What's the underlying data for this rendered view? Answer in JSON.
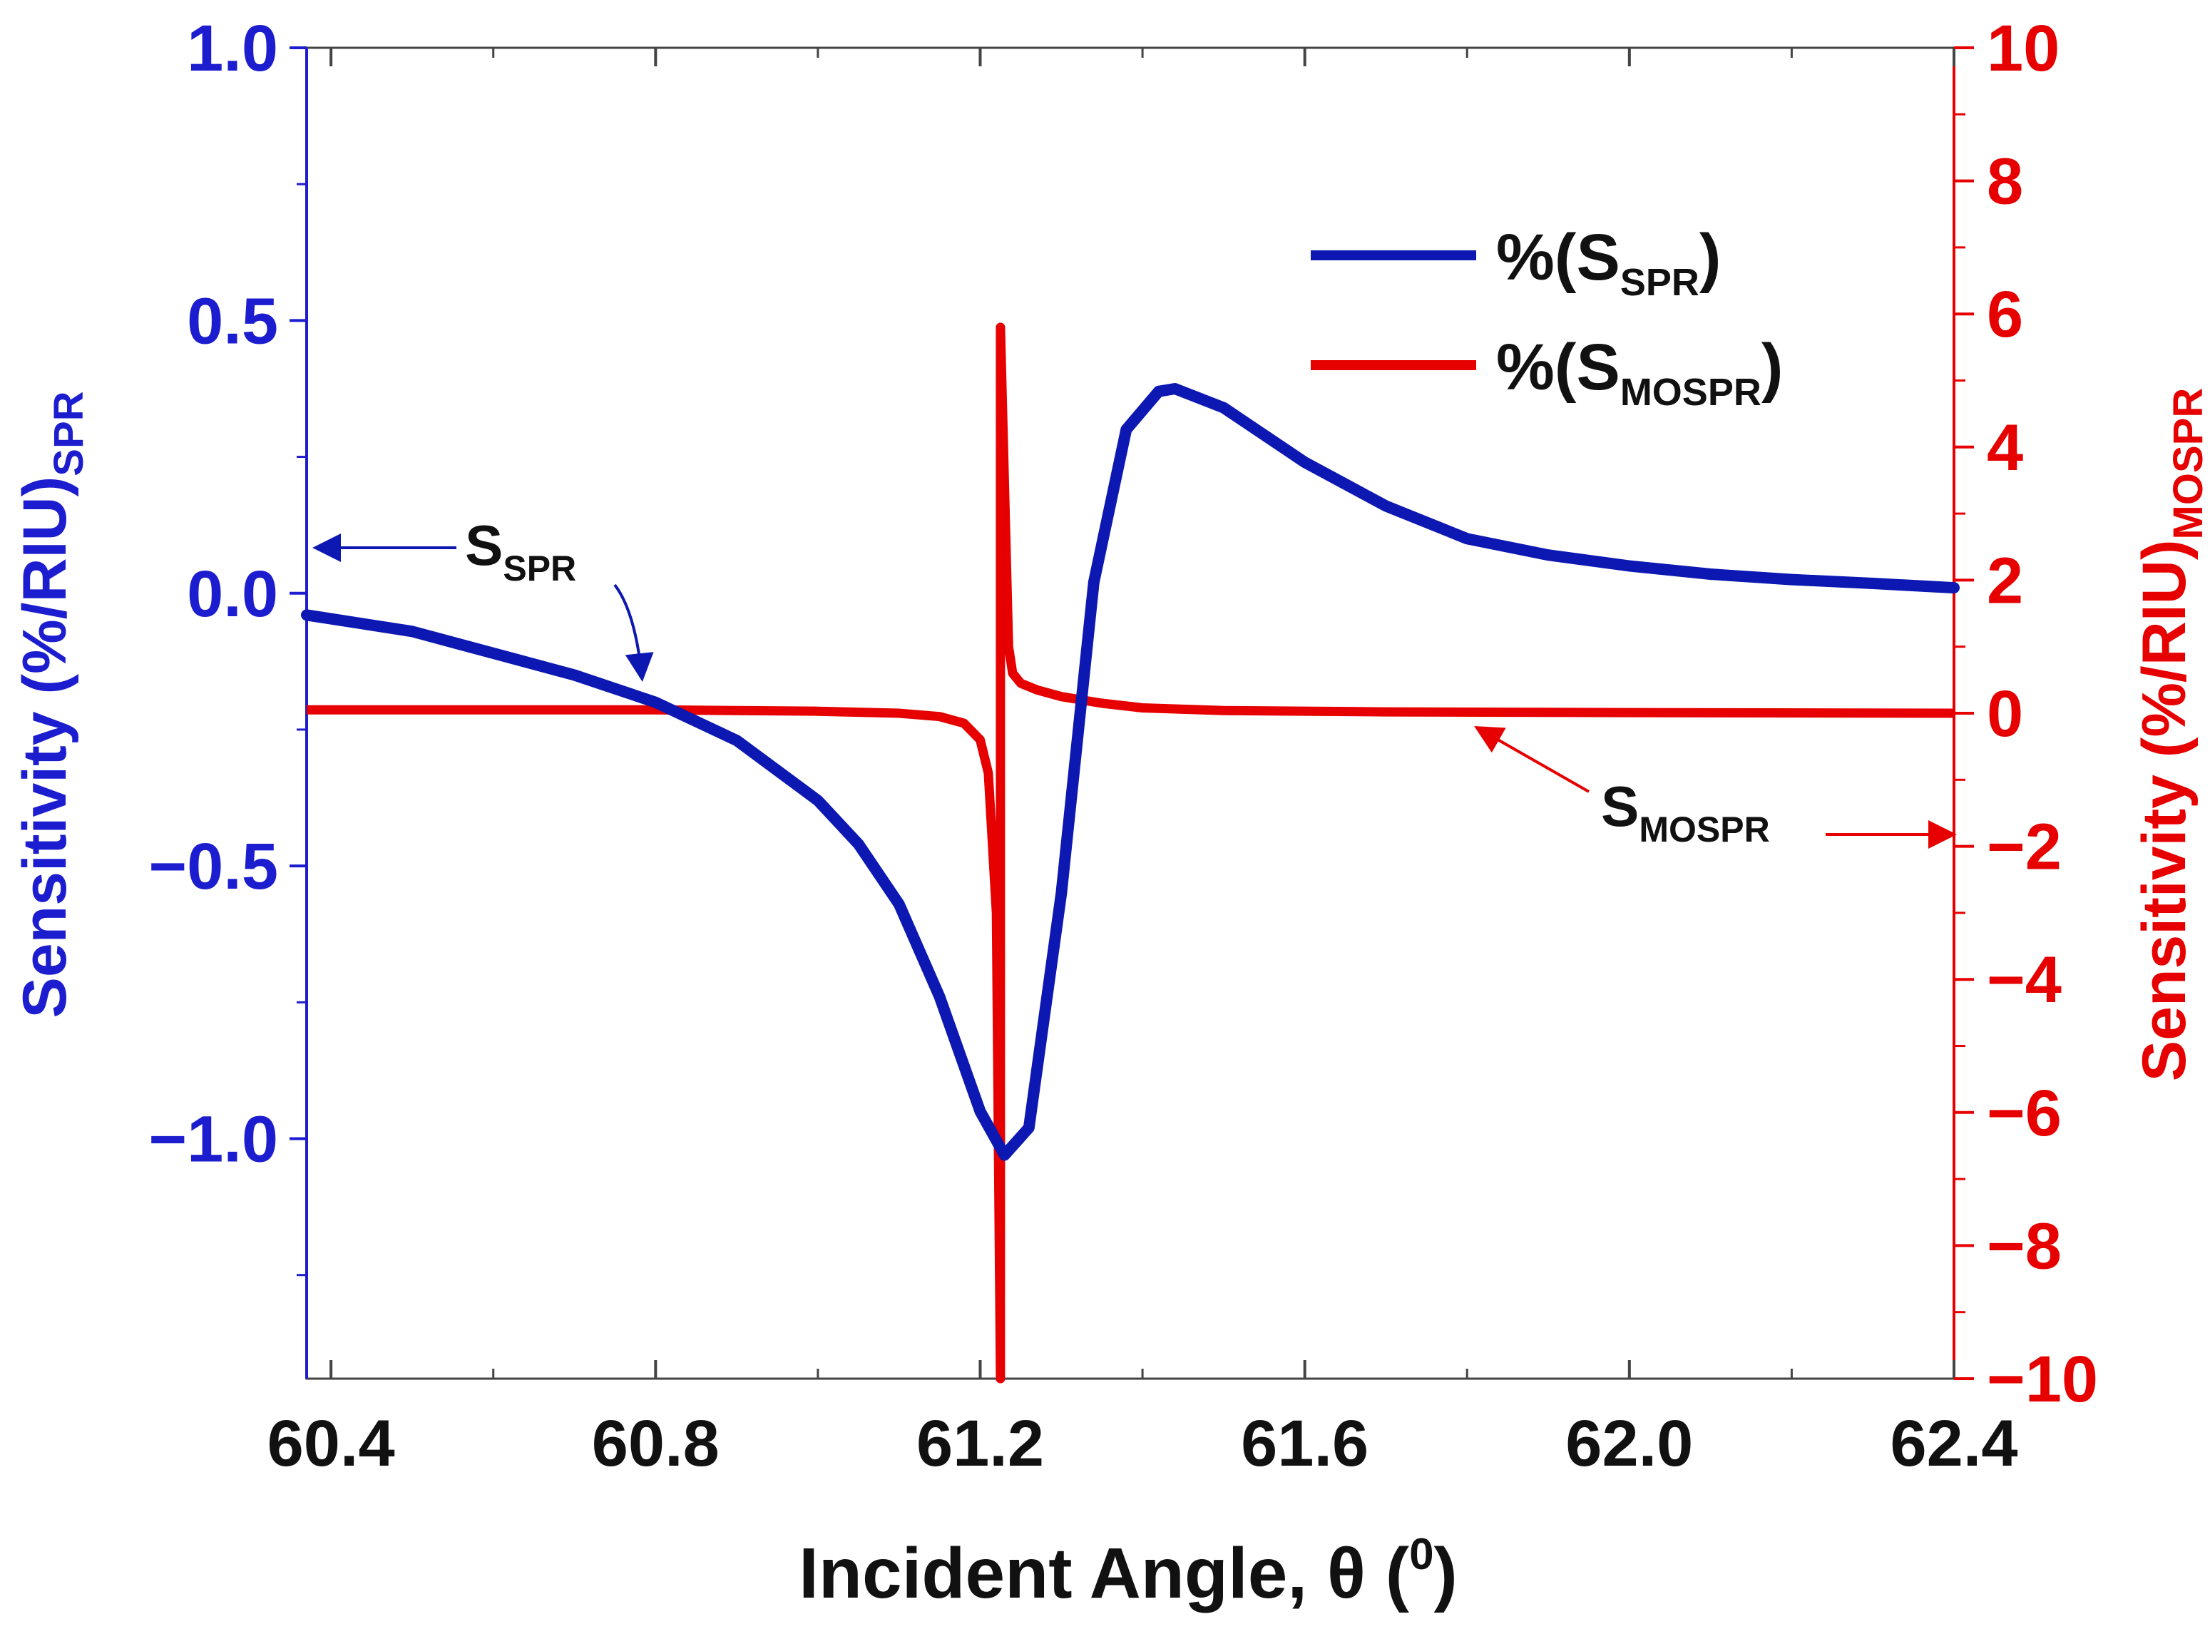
{
  "colors": {
    "spr": "#0d18b2",
    "mospr": "#e60000",
    "axis": "#1d1dd0",
    "frame": "#444444",
    "text": "#111111"
  },
  "chart_data": {
    "type": "line",
    "title": "",
    "x_axis": {
      "label": "Incident Angle, θ (⁰)",
      "label_main": "Incident Angle, θ (",
      "label_sup": "0",
      "label_close": ")",
      "range": [
        60.37,
        62.4
      ],
      "ticks": [
        60.4,
        60.8,
        61.2,
        61.6,
        62.0,
        62.4
      ],
      "tick_labels": [
        "60.4",
        "60.8",
        "61.2",
        "61.6",
        "62.0",
        "62.4"
      ]
    },
    "y_left": {
      "label": "Sensitivity (%/RIU)SPR",
      "label_main": "Sensitivity (%/RIU)",
      "label_sub": "SPR",
      "range": [
        -1.44,
        1.0
      ],
      "ticks": [
        1.0,
        0.5,
        0.0,
        -0.5,
        -1.0
      ],
      "tick_labels": [
        "1.0",
        "0.5",
        "0.0",
        "−0.5",
        "−1.0"
      ]
    },
    "y_right": {
      "label": "Sensitivity (%/RIU)MOSPR",
      "label_main": "Sensitivity (%/RIU)",
      "label_sub": "MOSPR",
      "range": [
        -10,
        10
      ],
      "ticks": [
        10,
        8,
        6,
        4,
        2,
        0,
        -2,
        -4,
        -6,
        -8,
        -10
      ],
      "tick_labels": [
        "10",
        "8",
        "6",
        "4",
        "2",
        "0",
        "−2",
        "−4",
        "−6",
        "−8",
        "−10"
      ]
    },
    "series": [
      {
        "name": "%(S_SPR)",
        "axis": "left",
        "x": [
          60.37,
          60.5,
          60.6,
          60.7,
          60.8,
          60.9,
          61.0,
          61.05,
          61.1,
          61.15,
          61.2,
          61.23,
          61.26,
          61.3,
          61.34,
          61.38,
          61.42,
          61.44,
          61.5,
          61.6,
          61.7,
          61.8,
          61.9,
          62.0,
          62.1,
          62.2,
          62.3,
          62.4
        ],
        "values": [
          -0.04,
          -0.07,
          -0.11,
          -0.15,
          -0.2,
          -0.27,
          -0.38,
          -0.46,
          -0.57,
          -0.74,
          -0.95,
          -1.03,
          -0.98,
          -0.55,
          0.02,
          0.3,
          0.37,
          0.375,
          0.34,
          0.24,
          0.16,
          0.1,
          0.07,
          0.05,
          0.035,
          0.025,
          0.018,
          0.01
        ]
      },
      {
        "name": "%(S_MOSPR)",
        "axis": "right",
        "x": [
          60.37,
          60.6,
          60.8,
          61.0,
          61.1,
          61.15,
          61.18,
          61.2,
          61.21,
          61.22,
          61.225,
          61.225,
          61.23,
          61.235,
          61.24,
          61.25,
          61.27,
          61.3,
          61.35,
          61.4,
          61.5,
          61.7,
          62.0,
          62.4
        ],
        "values": [
          0.05,
          0.05,
          0.05,
          0.03,
          0.0,
          -0.05,
          -0.15,
          -0.4,
          -0.9,
          -3.0,
          -10.0,
          5.8,
          3.4,
          1.0,
          0.6,
          0.45,
          0.35,
          0.25,
          0.15,
          0.08,
          0.04,
          0.02,
          0.01,
          0.0
        ]
      }
    ],
    "legend": {
      "position": "top-right",
      "items": [
        {
          "prefix": "%(S",
          "sub": "SPR",
          "suffix": ")"
        },
        {
          "prefix": "%(S",
          "sub": "MOSPR",
          "suffix": ")"
        }
      ]
    },
    "annotations": [
      {
        "main": "S",
        "sub": "SPR",
        "points_to": "left axis"
      },
      {
        "main": "S",
        "sub": "MOSPR",
        "points_to": "right axis"
      }
    ]
  }
}
